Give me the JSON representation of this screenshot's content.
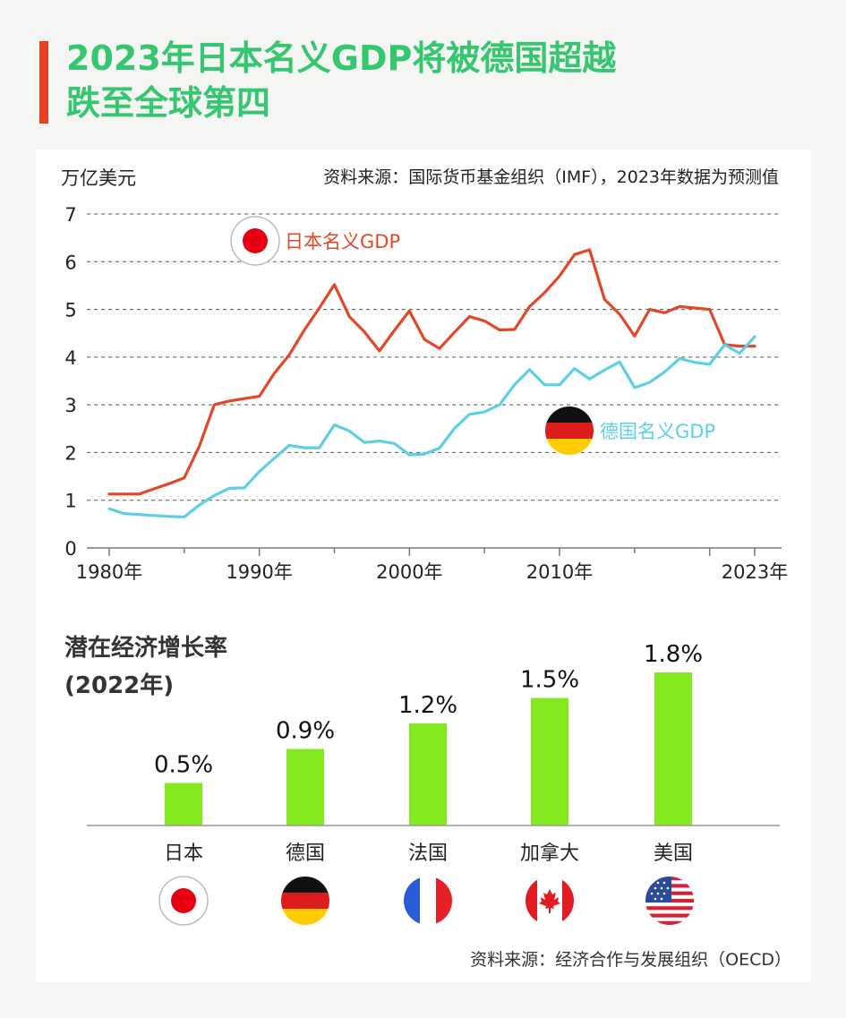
{
  "title": {
    "line1": "2023年日本名义GDP将被德国超越",
    "line2": "跌至全球第四"
  },
  "colors": {
    "accent_bar": "#e8401c",
    "title": "#35c76f",
    "japan_line": "#e2472a",
    "germany_line": "#5ccfe6",
    "bar": "#84ea1f"
  },
  "chart_data": [
    {
      "type": "line",
      "ylabel": "万亿美元",
      "source": "资料来源：国际货币基金组织（IMF），2023年数据为预测值",
      "ylim": [
        0,
        7
      ],
      "yticks": [
        "0",
        "1",
        "2",
        "3",
        "4",
        "5",
        "6",
        "7"
      ],
      "xlim": [
        1980,
        2023
      ],
      "xtick_values": [
        1980,
        1990,
        2000,
        2010,
        2023
      ],
      "xtick_labels": [
        "1980年",
        "1990年",
        "2000年",
        "2010年",
        "2023年"
      ],
      "grid": "horizontal dashed",
      "series": [
        {
          "name": "日本名义GDP",
          "legend_label": "日本名义GDP",
          "icon": "japan-flag-icon",
          "x": [
            1980,
            1981,
            1982,
            1983,
            1984,
            1985,
            1986,
            1987,
            1988,
            1989,
            1990,
            1991,
            1992,
            1993,
            1994,
            1995,
            1996,
            1997,
            1998,
            1999,
            2000,
            2001,
            2002,
            2003,
            2004,
            2005,
            2006,
            2007,
            2008,
            2009,
            2010,
            2011,
            2012,
            2013,
            2014,
            2015,
            2016,
            2017,
            2018,
            2019,
            2020,
            2021,
            2022,
            2023
          ],
          "values": [
            1.13,
            1.13,
            1.13,
            1.24,
            1.35,
            1.47,
            2.13,
            3.0,
            3.08,
            3.13,
            3.18,
            3.66,
            4.05,
            4.57,
            5.03,
            5.52,
            4.85,
            4.53,
            4.13,
            4.56,
            4.97,
            4.37,
            4.18,
            4.52,
            4.85,
            4.76,
            4.57,
            4.58,
            5.06,
            5.35,
            5.7,
            6.15,
            6.25,
            5.21,
            4.9,
            4.44,
            5.0,
            4.93,
            5.06,
            5.03,
            5.0,
            4.26,
            4.23,
            4.23
          ]
        },
        {
          "name": "德国名义GDP",
          "legend_label": "德国名义GDP",
          "icon": "germany-flag-icon",
          "x": [
            1980,
            1981,
            1982,
            1983,
            1984,
            1985,
            1986,
            1987,
            1988,
            1989,
            1990,
            1991,
            1992,
            1993,
            1994,
            1995,
            1996,
            1997,
            1998,
            1999,
            2000,
            2001,
            2002,
            2003,
            2004,
            2005,
            2006,
            2007,
            2008,
            2009,
            2010,
            2011,
            2012,
            2013,
            2014,
            2015,
            2016,
            2017,
            2018,
            2019,
            2020,
            2021,
            2022,
            2023
          ],
          "values": [
            0.82,
            0.72,
            0.7,
            0.68,
            0.66,
            0.65,
            0.9,
            1.1,
            1.25,
            1.26,
            1.6,
            1.88,
            2.15,
            2.1,
            2.1,
            2.58,
            2.45,
            2.21,
            2.24,
            2.19,
            1.95,
            1.97,
            2.09,
            2.51,
            2.8,
            2.85,
            3.0,
            3.42,
            3.74,
            3.42,
            3.42,
            3.76,
            3.54,
            3.73,
            3.9,
            3.36,
            3.47,
            3.69,
            3.97,
            3.89,
            3.85,
            4.26,
            4.08,
            4.43
          ]
        }
      ]
    },
    {
      "type": "bar",
      "title": "潜在经济增长率",
      "subtitle": "(2022年)",
      "categories": [
        "日本",
        "德国",
        "法国",
        "加拿大",
        "美国"
      ],
      "values": [
        0.5,
        0.9,
        1.2,
        1.5,
        1.8
      ],
      "value_labels": [
        "0.5%",
        "0.9%",
        "1.2%",
        "1.5%",
        "1.8%"
      ],
      "flag_icons": [
        "japan-flag-icon",
        "germany-flag-icon",
        "france-flag-icon",
        "canada-flag-icon",
        "usa-flag-icon"
      ],
      "source": "资料来源：经济合作与发展组织（OECD）"
    }
  ]
}
